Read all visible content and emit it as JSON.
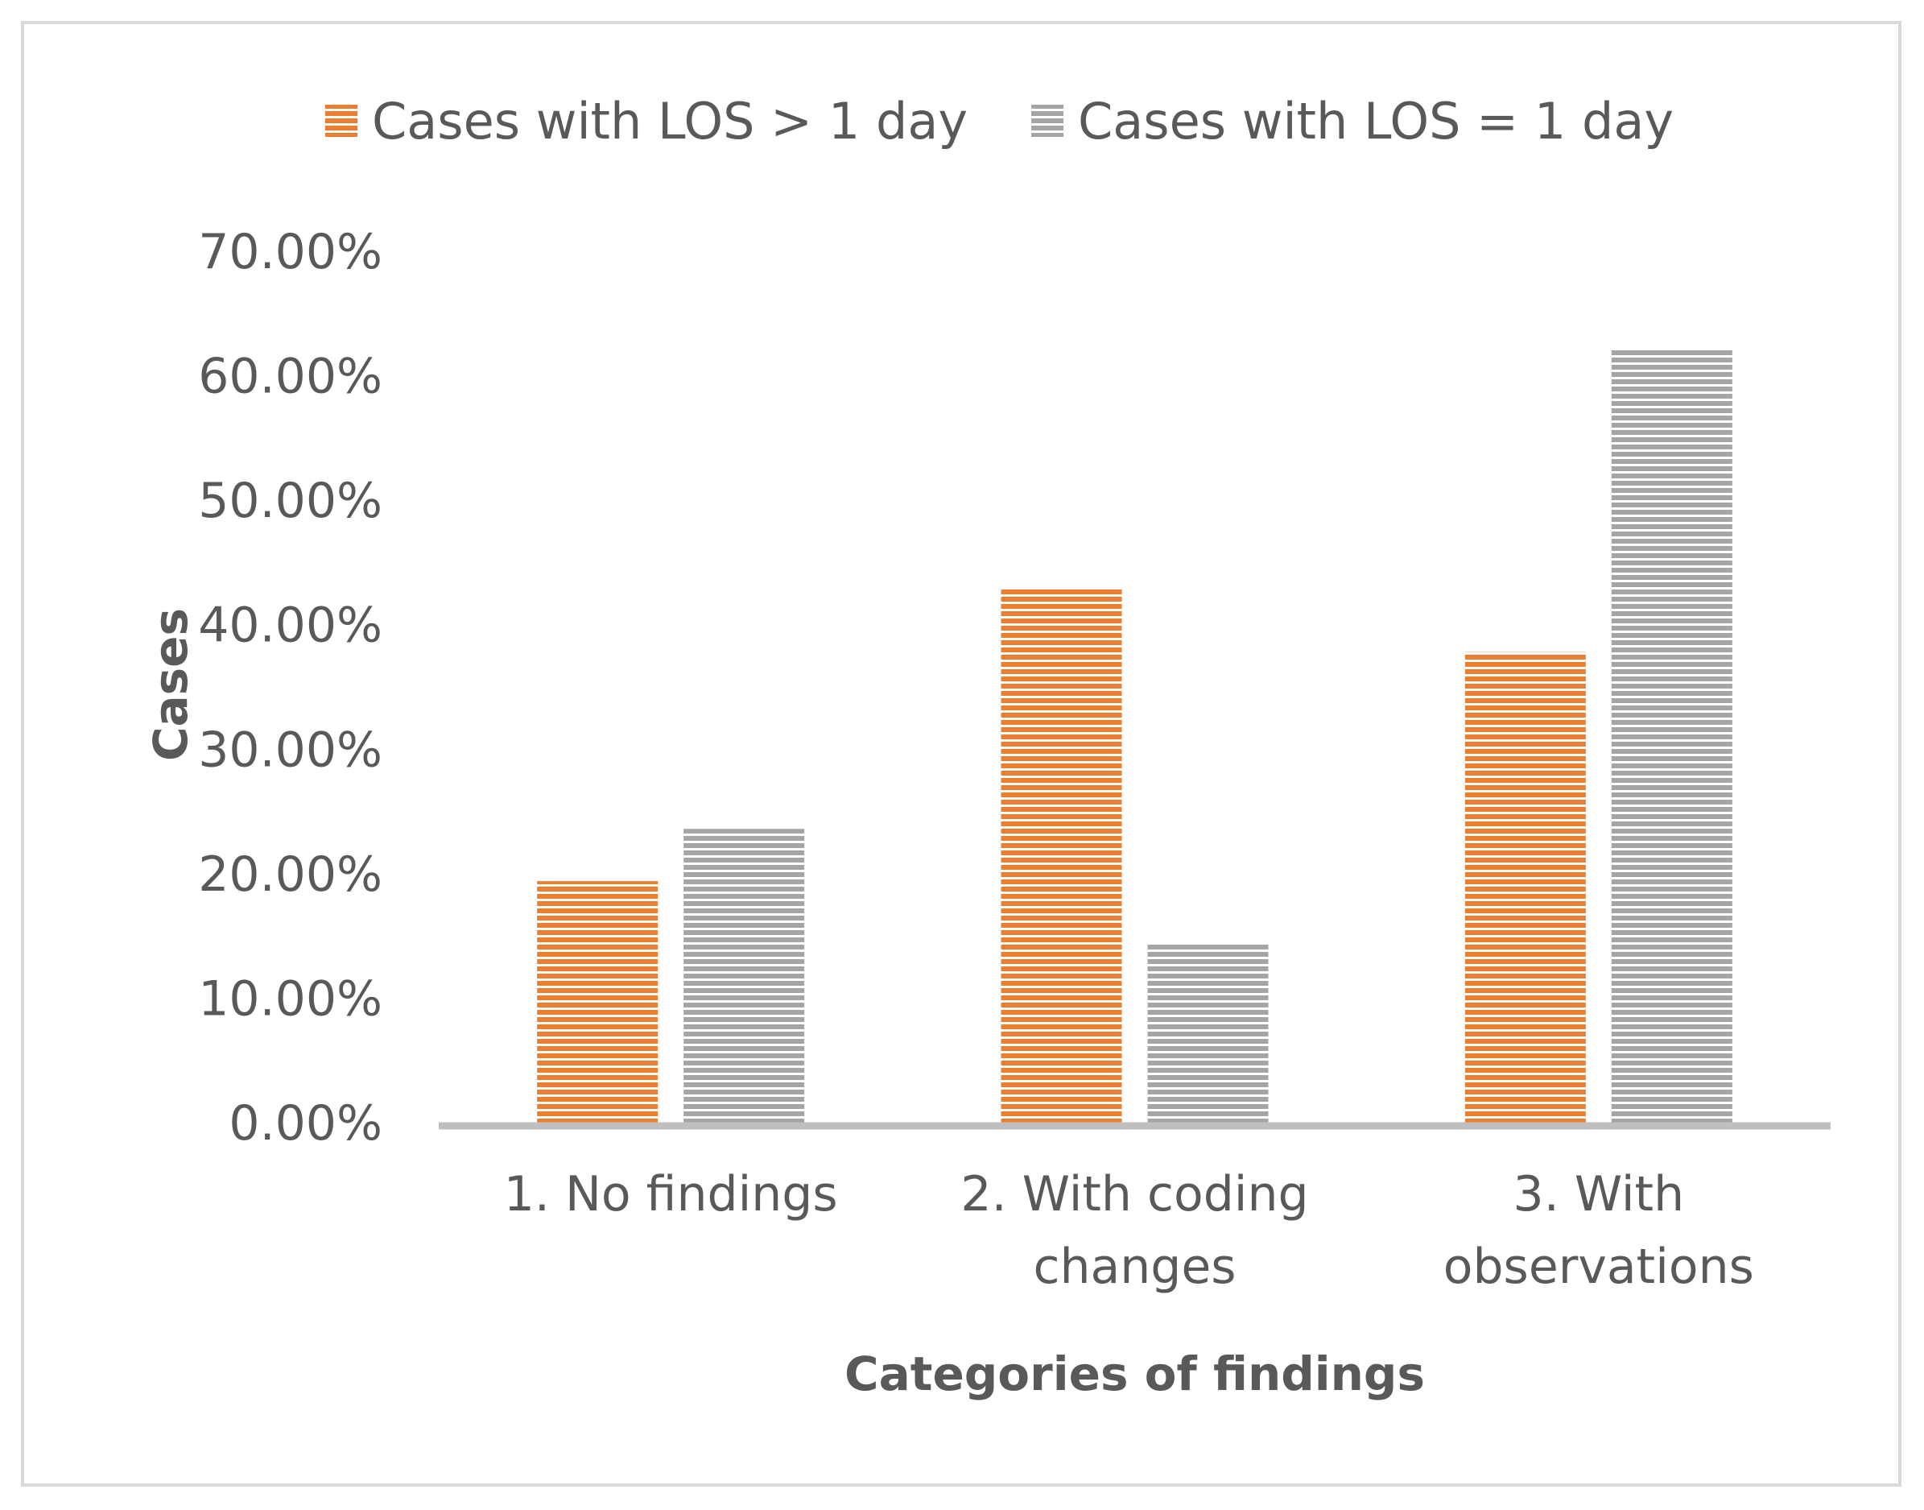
{
  "chart_data": {
    "type": "bar",
    "title": "",
    "categories": [
      [
        "1. No findings"
      ],
      [
        "2. With coding",
        "changes"
      ],
      [
        "3. With",
        "observations"
      ]
    ],
    "series": [
      {
        "name": "Cases with LOS > 1 day",
        "values": [
          19.4,
          42.9,
          37.8
        ],
        "color": "#ed7d31"
      },
      {
        "name": "Cases with LOS = 1 day",
        "values": [
          23.6,
          14.3,
          62.1
        ],
        "color": "#a5a5a5"
      }
    ],
    "xlabel": "Categories of findings",
    "ylabel": "Cases",
    "ylim": [
      0,
      70
    ],
    "yticks": [
      0,
      10,
      20,
      30,
      40,
      50,
      60,
      70
    ],
    "ytick_labels": [
      "0.00%",
      "10.00%",
      "20.00%",
      "30.00%",
      "40.00%",
      "50.00%",
      "60.00%",
      "70.00%"
    ],
    "grid": false,
    "legend_position": "top",
    "bar_pattern": "horizontal-stripes",
    "axis_color": "#bfbfbf"
  }
}
